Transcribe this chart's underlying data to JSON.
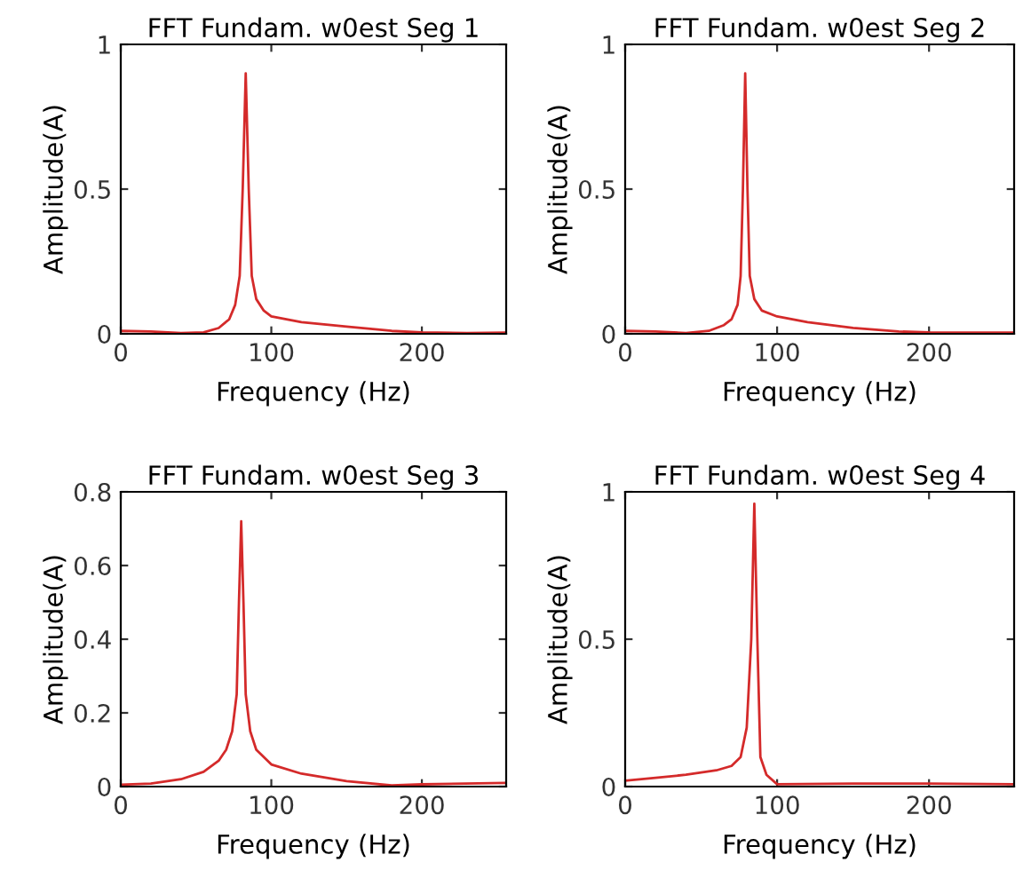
{
  "chart_data": [
    {
      "type": "line",
      "title": "FFT Fundam. w0est Seg 1",
      "xlabel": "Frequency (Hz)",
      "ylabel": "Amplitude(A)",
      "xlim": [
        0,
        256
      ],
      "ylim": [
        0,
        1
      ],
      "xticks": [
        0,
        100,
        200
      ],
      "yticks": [
        0,
        0.5,
        1
      ],
      "series": [
        {
          "color": "#d42a2a",
          "x": [
            0,
            20,
            40,
            55,
            65,
            72,
            76,
            79,
            81,
            83,
            85,
            87,
            90,
            95,
            100,
            120,
            150,
            180,
            200,
            230,
            255
          ],
          "values": [
            0.01,
            0.008,
            0.003,
            0.005,
            0.02,
            0.05,
            0.1,
            0.2,
            0.5,
            0.9,
            0.5,
            0.2,
            0.12,
            0.08,
            0.06,
            0.04,
            0.025,
            0.01,
            0.005,
            0.003,
            0.004
          ]
        }
      ]
    },
    {
      "type": "line",
      "title": "FFT Fundam. w0est Seg 2",
      "xlabel": "Frequency (Hz)",
      "ylabel": "Amplitude(A)",
      "xlim": [
        0,
        256
      ],
      "ylim": [
        0,
        1
      ],
      "xticks": [
        0,
        100,
        200
      ],
      "yticks": [
        0,
        0.5,
        1
      ],
      "series": [
        {
          "color": "#d42a2a",
          "x": [
            0,
            20,
            40,
            55,
            65,
            70,
            74,
            76,
            77.5,
            79,
            80.5,
            82,
            85,
            90,
            100,
            120,
            150,
            180,
            200,
            255
          ],
          "values": [
            0.01,
            0.008,
            0.003,
            0.01,
            0.03,
            0.05,
            0.1,
            0.2,
            0.5,
            0.9,
            0.5,
            0.2,
            0.12,
            0.08,
            0.06,
            0.04,
            0.02,
            0.008,
            0.005,
            0.004
          ]
        }
      ]
    },
    {
      "type": "line",
      "title": "FFT Fundam. w0est Seg 3",
      "xlabel": "Frequency (Hz)",
      "ylabel": "Amplitude(A)",
      "xlim": [
        0,
        256
      ],
      "ylim": [
        0,
        0.8
      ],
      "xticks": [
        0,
        100,
        200
      ],
      "yticks": [
        0,
        0.2,
        0.4,
        0.6,
        0.8
      ],
      "series": [
        {
          "color": "#d42a2a",
          "x": [
            0,
            20,
            40,
            55,
            65,
            70,
            74,
            77,
            78.5,
            80,
            81.5,
            83,
            86,
            90,
            100,
            120,
            150,
            180,
            200,
            255
          ],
          "values": [
            0.005,
            0.008,
            0.02,
            0.04,
            0.07,
            0.1,
            0.15,
            0.25,
            0.5,
            0.72,
            0.5,
            0.25,
            0.15,
            0.1,
            0.06,
            0.035,
            0.015,
            0.003,
            0.006,
            0.01
          ]
        }
      ]
    },
    {
      "type": "line",
      "title": "FFT Fundam. w0est Seg 4",
      "xlabel": "Frequency (Hz)",
      "ylabel": "Amplitude(A)",
      "xlim": [
        0,
        256
      ],
      "ylim": [
        0,
        1
      ],
      "xticks": [
        0,
        100,
        200
      ],
      "yticks": [
        0,
        0.5,
        1
      ],
      "series": [
        {
          "color": "#d42a2a",
          "x": [
            0,
            20,
            40,
            60,
            70,
            76,
            80,
            83,
            85,
            87,
            89,
            93,
            100,
            150,
            200,
            255
          ],
          "values": [
            0.02,
            0.03,
            0.04,
            0.055,
            0.07,
            0.1,
            0.2,
            0.5,
            0.96,
            0.5,
            0.1,
            0.04,
            0.008,
            0.01,
            0.01,
            0.008
          ]
        }
      ]
    }
  ]
}
